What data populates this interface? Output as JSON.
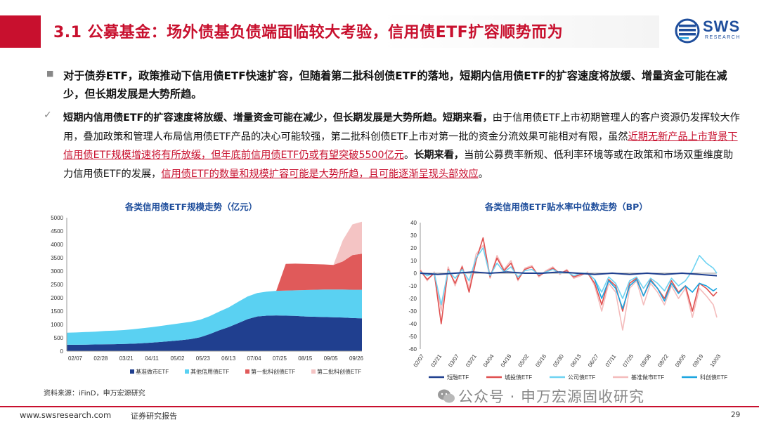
{
  "header": {
    "title": "3.1 公募基金：场外债基负债端面临较大考验，信用债ETF扩容顺势而为",
    "logo_text": "SWS",
    "logo_sub": "RESEARCH"
  },
  "body": {
    "bullet1_symbol": "■",
    "para1": "对于债券ETF，政策推动下信用债ETF快速扩容，但随着第二批科创债ETF的落地，短期内信用债ETF的扩容速度将放缓、增量资金可能在减少，但长期发展是大势所趋。",
    "bullet2_symbol": "✓",
    "p2_s1": "短期内信用债ETF的扩容速度将放缓、增量资金可能在减少，但长期发展是大势所趋。短期来看，",
    "p2_s2": "由于信用债ETF上市初期管理人的客户资源仍发挥较大作用，叠加政策和管理人布局信用债ETF产品的决心可能较强，第二批科创债ETF上市对第一批的资金分流效果可能相对有限，虽然",
    "p2_s3": "近期无新产品上市背景下信用债ETF规模增速将有所放缓，但年底前信用债ETF仍或有望突破5500亿元",
    "p2_s4": "。",
    "p2_s5": "长期来看，",
    "p2_s6": "当前公募费率新规、低利率环境等或在政策和市场双重维度助力信用债ETF的发展，",
    "p2_s7": "信用债ETF的数量和规模扩容可能是大势所趋，且可能逐渐呈现头部效应",
    "p2_s8": "。"
  },
  "chart1": {
    "title": "各类信用债ETF规模走势（亿元）",
    "chart_data": {
      "type": "area",
      "title": "各类信用债ETF规模走势（亿元）",
      "x_ticks": [
        "02/07",
        "02/28",
        "03/21",
        "04/11",
        "05/02",
        "05/23",
        "06/13",
        "07/04",
        "07/25",
        "08/15",
        "09/05",
        "09/26"
      ],
      "ylim": [
        0,
        5000
      ],
      "y_ticks": [
        0,
        500,
        1000,
        1500,
        2000,
        2500,
        3000,
        3500,
        4000,
        4500,
        5000
      ],
      "stacked": true,
      "legend_position": "bottom",
      "series": [
        {
          "name": "基准做市ETF",
          "color": "#203f8f",
          "x": [
            0,
            8,
            16,
            24,
            32,
            40,
            48,
            56,
            64,
            72,
            80,
            88,
            96,
            104,
            112,
            120,
            128,
            136,
            144,
            152,
            160,
            168,
            176,
            184,
            192,
            200,
            208,
            216,
            224,
            232,
            240,
            248
          ],
          "values": [
            240,
            240,
            245,
            250,
            255,
            260,
            270,
            280,
            300,
            320,
            350,
            380,
            410,
            450,
            520,
            640,
            780,
            900,
            1050,
            1200,
            1300,
            1330,
            1340,
            1330,
            1320,
            1300,
            1290,
            1280,
            1270,
            1260,
            1240,
            1230
          ]
        },
        {
          "name": "其他信用债ETF",
          "color": "#5ad1f2",
          "x": [
            0,
            8,
            16,
            24,
            32,
            40,
            48,
            56,
            64,
            72,
            80,
            88,
            96,
            104,
            112,
            120,
            128,
            136,
            144,
            152,
            160,
            168,
            176,
            184,
            192,
            200,
            208,
            216,
            224,
            232,
            240,
            248
          ],
          "values": [
            450,
            460,
            470,
            480,
            500,
            510,
            520,
            540,
            560,
            580,
            600,
            620,
            640,
            650,
            660,
            670,
            700,
            740,
            800,
            850,
            880,
            900,
            920,
            940,
            960,
            990,
            1010,
            1030,
            1040,
            1050,
            1060,
            1070
          ]
        },
        {
          "name": "第一批科创债ETF",
          "color": "#e05a5a",
          "x": [
            0,
            8,
            16,
            24,
            32,
            40,
            48,
            56,
            64,
            72,
            80,
            88,
            96,
            104,
            112,
            120,
            128,
            136,
            144,
            152,
            160,
            168,
            176,
            184,
            192,
            200,
            208,
            216,
            224,
            232,
            240,
            248
          ],
          "values": [
            0,
            0,
            0,
            0,
            0,
            0,
            0,
            0,
            0,
            0,
            0,
            0,
            0,
            0,
            0,
            0,
            0,
            0,
            0,
            0,
            0,
            0,
            0,
            1000,
            1000,
            980,
            960,
            940,
            920,
            1050,
            1300,
            1350
          ]
        },
        {
          "name": "第二批科创债ETF",
          "color": "#f4c4c4",
          "x": [
            0,
            8,
            16,
            24,
            32,
            40,
            48,
            56,
            64,
            72,
            80,
            88,
            96,
            104,
            112,
            120,
            128,
            136,
            144,
            152,
            160,
            168,
            176,
            184,
            192,
            200,
            208,
            216,
            224,
            232,
            240,
            248
          ],
          "values": [
            0,
            0,
            0,
            0,
            0,
            0,
            0,
            0,
            0,
            0,
            0,
            0,
            0,
            0,
            0,
            0,
            0,
            0,
            0,
            0,
            0,
            0,
            0,
            0,
            0,
            0,
            0,
            0,
            0,
            800,
            1150,
            1200
          ]
        }
      ]
    }
  },
  "chart2": {
    "title": "各类信用债ETF贴水率中位数走势（BP）",
    "chart_data": {
      "type": "line",
      "title": "各类信用债ETF贴水率中位数走势（BP）",
      "x_ticks": [
        "02/07",
        "02/21",
        "03/07",
        "03/21",
        "04/04",
        "04/18",
        "05/02",
        "05/16",
        "05/30",
        "06/13",
        "06/27",
        "07/11",
        "07/25",
        "08/08",
        "08/22",
        "09/05",
        "09/19",
        "10/03"
      ],
      "ylim": [
        -60,
        40
      ],
      "y_ticks": [
        40,
        30,
        20,
        10,
        0,
        -10,
        -20,
        -30,
        -40,
        -50,
        -60
      ],
      "legend_position": "bottom",
      "series": [
        {
          "name": "短融ETF",
          "color": "#1f3f8f",
          "x": [
            0,
            10,
            20,
            30,
            40,
            50,
            60,
            70,
            80,
            90,
            100,
            110,
            120,
            130,
            140,
            150,
            160,
            170
          ],
          "values": [
            0,
            -1,
            0,
            1,
            0,
            1,
            0,
            0,
            1,
            0,
            -1,
            0,
            -1,
            0,
            -1,
            0,
            -1,
            -2
          ]
        },
        {
          "name": "城投债ETF",
          "color": "#e05050",
          "x": [
            0,
            4,
            8,
            12,
            16,
            20,
            24,
            28,
            32,
            36,
            40,
            44,
            48,
            52,
            56,
            60,
            64,
            68,
            72,
            76,
            80,
            84,
            88,
            92,
            96,
            100,
            104,
            108,
            112,
            116,
            120,
            124,
            128,
            132,
            136,
            140,
            144,
            148,
            152,
            156,
            160,
            164,
            168,
            170
          ],
          "values": [
            2,
            -5,
            0,
            -40,
            3,
            -8,
            5,
            -15,
            10,
            28,
            -3,
            12,
            2,
            8,
            -5,
            3,
            5,
            -2,
            1,
            4,
            0,
            2,
            -3,
            -1,
            0,
            -8,
            -25,
            -5,
            -10,
            -30,
            -8,
            -4,
            -18,
            -5,
            -12,
            -20,
            -6,
            -15,
            -10,
            -30,
            -8,
            -12,
            -18,
            -15
          ]
        },
        {
          "name": "公司债ETF",
          "color": "#6fd3f2",
          "x": [
            0,
            4,
            8,
            12,
            16,
            20,
            24,
            28,
            32,
            36,
            40,
            44,
            48,
            52,
            56,
            60,
            64,
            68,
            72,
            76,
            80,
            84,
            88,
            92,
            96,
            100,
            104,
            108,
            112,
            116,
            120,
            124,
            128,
            132,
            136,
            140,
            144,
            148,
            152,
            156,
            160,
            164,
            168,
            170
          ],
          "values": [
            1,
            -2,
            0,
            -25,
            2,
            -4,
            3,
            -6,
            12,
            20,
            -2,
            8,
            1,
            5,
            -3,
            2,
            3,
            -1,
            1,
            3,
            0,
            1,
            -2,
            0,
            0,
            -5,
            -15,
            -3,
            -8,
            -20,
            -6,
            -3,
            -12,
            -4,
            -8,
            -14,
            -4,
            -10,
            -6,
            2,
            14,
            8,
            4,
            0
          ]
        },
        {
          "name": "基准做市ETF",
          "color": "#f4bcbc",
          "x": [
            0,
            4,
            8,
            12,
            16,
            20,
            24,
            28,
            32,
            36,
            40,
            44,
            48,
            52,
            56,
            60,
            64,
            68,
            72,
            76,
            80,
            84,
            88,
            92,
            96,
            100,
            104,
            108,
            112,
            116,
            120,
            124,
            128,
            132,
            136,
            140,
            144,
            148,
            152,
            156,
            160,
            164,
            168,
            170
          ],
          "values": [
            3,
            -6,
            1,
            -30,
            5,
            -10,
            6,
            -12,
            15,
            22,
            -4,
            14,
            3,
            10,
            -6,
            4,
            6,
            -3,
            2,
            5,
            -1,
            3,
            -4,
            -2,
            1,
            -10,
            -30,
            -8,
            -15,
            -45,
            -12,
            -6,
            -25,
            -8,
            -15,
            -25,
            -10,
            -20,
            -12,
            -35,
            -12,
            -18,
            -25,
            -35
          ]
        },
        {
          "name": "科创债ETF",
          "color": "#1aa5e0",
          "x": [
            100,
            104,
            108,
            112,
            116,
            120,
            124,
            128,
            132,
            136,
            140,
            144,
            148,
            152,
            156,
            160,
            164,
            168,
            170
          ],
          "values": [
            -5,
            -20,
            -6,
            -12,
            -28,
            -10,
            -5,
            -18,
            -6,
            -12,
            -22,
            -8,
            -16,
            -10,
            -15,
            -8,
            -10,
            -14,
            -12
          ]
        }
      ]
    }
  },
  "source": "资料来源：iFinD，申万宏源研究",
  "watermark": "公众号 · 申万宏源固收研究",
  "footer": {
    "url": "www.swsresearch.com",
    "label": "证券研究报告",
    "page": "29"
  }
}
